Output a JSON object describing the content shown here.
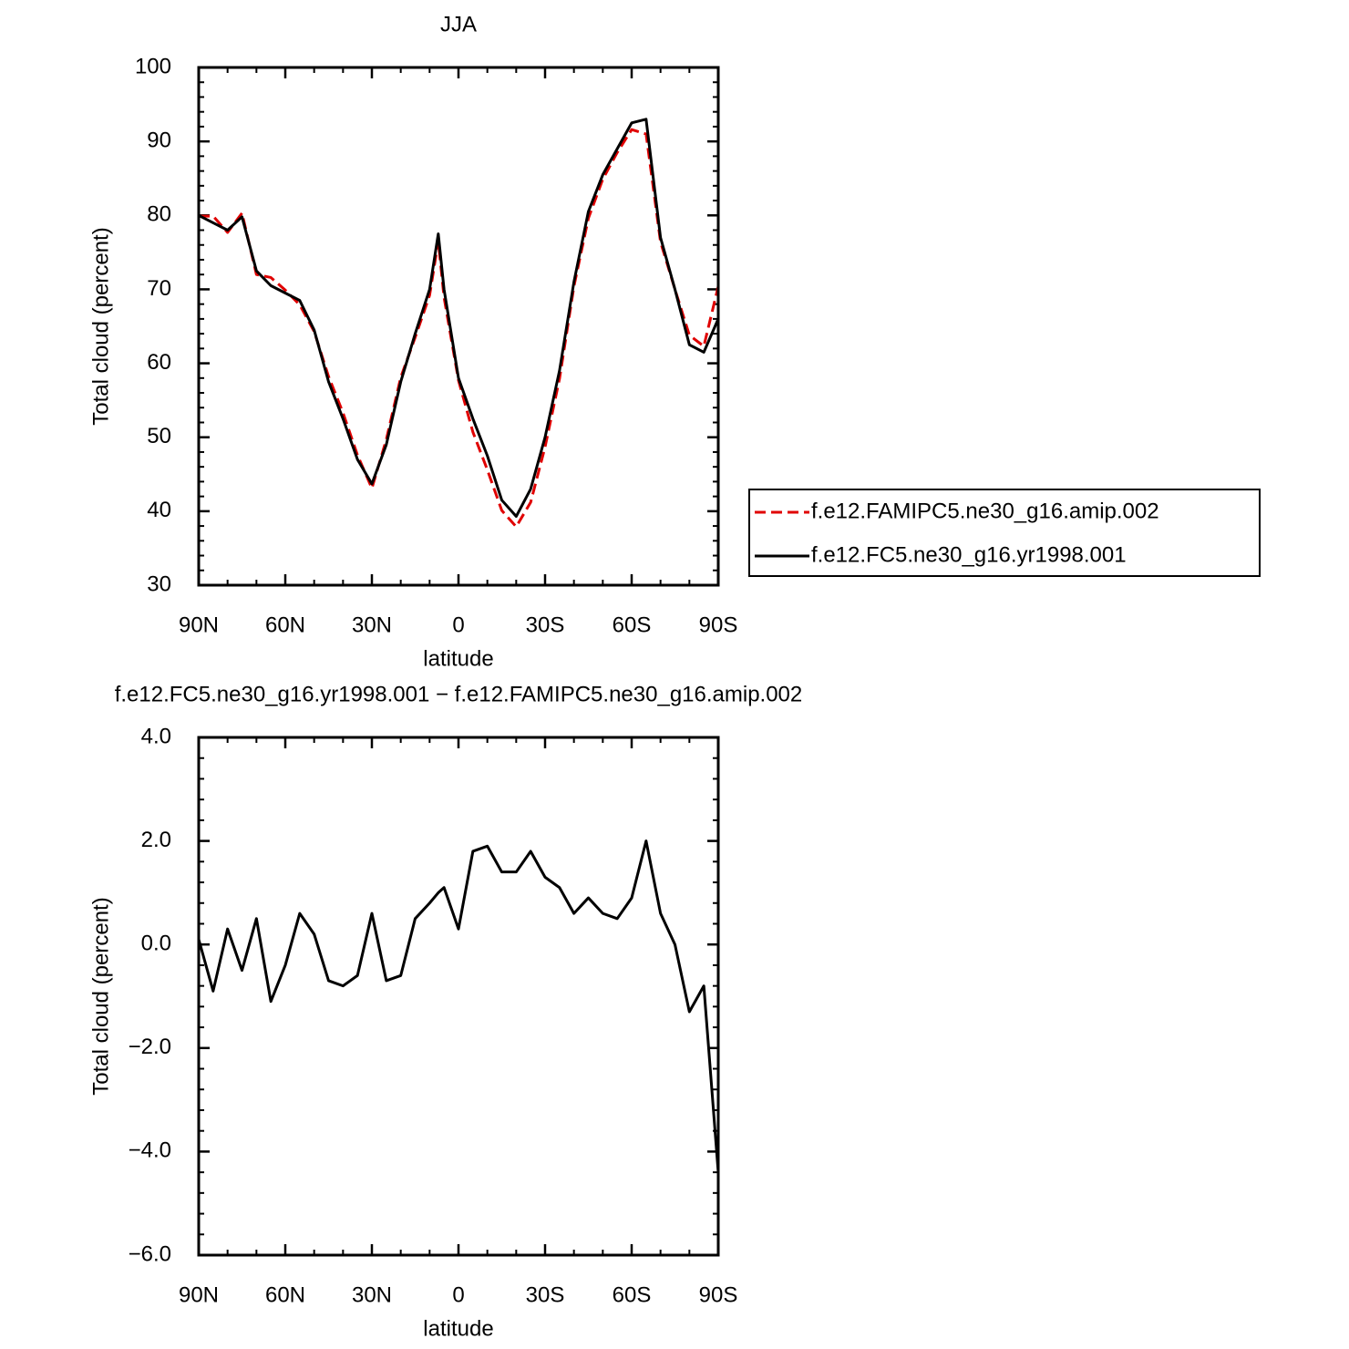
{
  "chart_data": [
    {
      "type": "line",
      "title": "JJA",
      "xlabel": "latitude",
      "ylabel": "Total cloud (percent)",
      "x": [
        90,
        85,
        80,
        75,
        70,
        65,
        60,
        55,
        50,
        45,
        40,
        35,
        30,
        25,
        20,
        15,
        10,
        7,
        5,
        0,
        -5,
        -10,
        -15,
        -20,
        -25,
        -30,
        -35,
        -40,
        -45,
        -50,
        -55,
        -60,
        -65,
        -70,
        -75,
        -80,
        -85,
        -90
      ],
      "xlim": [
        90,
        -90
      ],
      "xticks": [
        {
          "value": 90,
          "label": "90N"
        },
        {
          "value": 60,
          "label": "60N"
        },
        {
          "value": 30,
          "label": "30N"
        },
        0,
        {
          "value": -30,
          "label": "30S"
        },
        {
          "value": -60,
          "label": "60S"
        },
        {
          "value": -90,
          "label": "90S"
        }
      ],
      "ylim": [
        30,
        100
      ],
      "yticks": [
        30,
        40,
        50,
        60,
        70,
        80,
        90,
        100
      ],
      "series": [
        {
          "name": "f.e12.FAMIPC5.ne30_g16.amip.002",
          "color": "#e00000",
          "dash": true,
          "values": [
            79.9,
            79.9,
            77.7,
            80.3,
            72,
            71.6,
            69.9,
            67.9,
            64.3,
            58.2,
            53.3,
            47.6,
            43.1,
            49.7,
            58.1,
            63.5,
            69.2,
            76.5,
            68.9,
            57.7,
            50.7,
            45.6,
            40.1,
            37.9,
            41.2,
            48.7,
            57.9,
            70.4,
            79.6,
            84.9,
            88.5,
            91.6,
            91,
            76.4,
            70,
            63.8,
            62.3,
            70.4
          ]
        },
        {
          "name": "f.e12.FC5.ne30_g16.yr1998.001",
          "color": "#000000",
          "dash": false,
          "values": [
            80,
            79,
            78,
            79.8,
            72.5,
            70.5,
            69.5,
            68.5,
            64.5,
            57.5,
            52.5,
            47,
            43.7,
            49,
            57.5,
            64,
            70,
            77.5,
            70,
            58,
            52.5,
            47.5,
            41.5,
            39.3,
            43,
            50,
            59,
            71,
            80.5,
            85.5,
            89,
            92.5,
            93,
            77,
            70,
            62.5,
            61.5,
            66
          ]
        }
      ]
    },
    {
      "type": "line",
      "title": "f.e12.FC5.ne30_g16.yr1998.001 − f.e12.FAMIPC5.ne30_g16.amip.002",
      "xlabel": "latitude",
      "ylabel": "Total cloud (percent)",
      "x": [
        90,
        85,
        80,
        75,
        70,
        65,
        60,
        55,
        50,
        45,
        40,
        35,
        30,
        25,
        20,
        15,
        10,
        7,
        5,
        0,
        -5,
        -10,
        -15,
        -20,
        -25,
        -30,
        -35,
        -40,
        -45,
        -50,
        -55,
        -60,
        -65,
        -70,
        -75,
        -80,
        -85,
        -90
      ],
      "xlim": [
        90,
        -90
      ],
      "xticks": [
        {
          "value": 90,
          "label": "90N"
        },
        {
          "value": 60,
          "label": "60N"
        },
        {
          "value": 30,
          "label": "30N"
        },
        0,
        {
          "value": -30,
          "label": "30S"
        },
        {
          "value": -60,
          "label": "60S"
        },
        {
          "value": -90,
          "label": "90S"
        }
      ],
      "ylim": [
        -6,
        4
      ],
      "yticks": [
        {
          "value": -6,
          "label": "−6.0"
        },
        {
          "value": -4,
          "label": "−4.0"
        },
        {
          "value": -2,
          "label": "−2.0"
        },
        {
          "value": 0,
          "label": "0.0"
        },
        {
          "value": 2,
          "label": "2.0"
        },
        {
          "value": 4,
          "label": "4.0"
        }
      ],
      "color": "#000000",
      "values": [
        0.1,
        -0.9,
        0.3,
        -0.5,
        0.5,
        -1.1,
        -0.4,
        0.6,
        0.2,
        -0.7,
        -0.8,
        -0.6,
        0.6,
        -0.7,
        -0.6,
        0.5,
        0.8,
        1.0,
        1.1,
        0.3,
        1.8,
        1.9,
        1.4,
        1.4,
        1.8,
        1.3,
        1.1,
        0.6,
        0.9,
        0.6,
        0.5,
        0.9,
        2.0,
        0.6,
        0.0,
        -1.3,
        -0.8,
        -4.4
      ]
    }
  ]
}
